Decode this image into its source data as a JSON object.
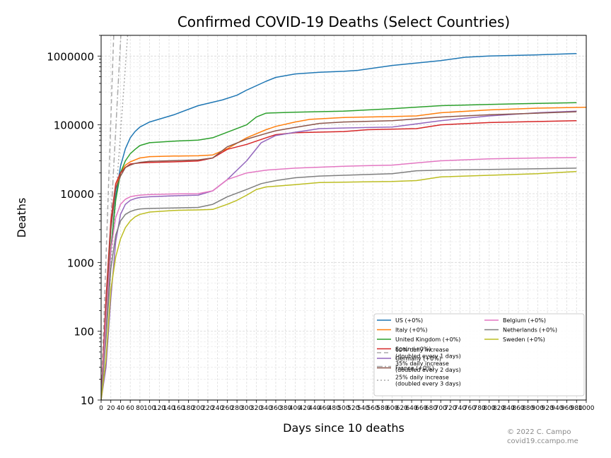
{
  "chart_data": {
    "type": "line",
    "title": "Confirmed COVID-19 Deaths (Select Countries)",
    "xlabel": "Days since 10 deaths",
    "ylabel": "Deaths",
    "yscale": "log",
    "xlim": [
      0,
      1000
    ],
    "ylim": [
      10,
      2000000
    ],
    "yticks": [
      10,
      100,
      1000,
      10000,
      100000,
      1000000
    ],
    "ytick_labels": [
      "10",
      "100",
      "1000",
      "10000",
      "100000",
      "1000000"
    ],
    "xtick_step": 20,
    "grid": true,
    "legend_position": "lower-right",
    "series": [
      {
        "name": "US (+0%)",
        "color": "#1f77b4",
        "points": [
          [
            0,
            10
          ],
          [
            10,
            120
          ],
          [
            20,
            1500
          ],
          [
            30,
            9000
          ],
          [
            40,
            25000
          ],
          [
            50,
            45000
          ],
          [
            60,
            65000
          ],
          [
            70,
            80000
          ],
          [
            80,
            93000
          ],
          [
            100,
            110000
          ],
          [
            150,
            140000
          ],
          [
            200,
            190000
          ],
          [
            250,
            230000
          ],
          [
            280,
            270000
          ],
          [
            300,
            320000
          ],
          [
            340,
            430000
          ],
          [
            360,
            490000
          ],
          [
            400,
            550000
          ],
          [
            450,
            580000
          ],
          [
            500,
            600000
          ],
          [
            530,
            620000
          ],
          [
            600,
            730000
          ],
          [
            700,
            860000
          ],
          [
            750,
            960000
          ],
          [
            800,
            1000000
          ],
          [
            900,
            1040000
          ],
          [
            980,
            1090000
          ]
        ]
      },
      {
        "name": "Italy (+0%)",
        "color": "#ff7f0e",
        "points": [
          [
            0,
            10
          ],
          [
            10,
            200
          ],
          [
            20,
            3000
          ],
          [
            30,
            12000
          ],
          [
            40,
            20000
          ],
          [
            50,
            26000
          ],
          [
            60,
            29000
          ],
          [
            70,
            31000
          ],
          [
            80,
            33000
          ],
          [
            100,
            34500
          ],
          [
            150,
            35200
          ],
          [
            200,
            35500
          ],
          [
            230,
            36500
          ],
          [
            260,
            45000
          ],
          [
            300,
            65000
          ],
          [
            340,
            85000
          ],
          [
            360,
            95000
          ],
          [
            400,
            110000
          ],
          [
            430,
            120000
          ],
          [
            500,
            128000
          ],
          [
            600,
            132000
          ],
          [
            650,
            135000
          ],
          [
            700,
            150000
          ],
          [
            800,
            165000
          ],
          [
            900,
            175000
          ],
          [
            1000,
            180000
          ]
        ]
      },
      {
        "name": "United Kingdom (+0%)",
        "color": "#2ca02c",
        "points": [
          [
            0,
            10
          ],
          [
            10,
            100
          ],
          [
            20,
            1500
          ],
          [
            30,
            8000
          ],
          [
            40,
            20000
          ],
          [
            50,
            30000
          ],
          [
            60,
            38000
          ],
          [
            70,
            44000
          ],
          [
            80,
            50000
          ],
          [
            100,
            55000
          ],
          [
            150,
            58000
          ],
          [
            200,
            60000
          ],
          [
            230,
            65000
          ],
          [
            260,
            78000
          ],
          [
            300,
            100000
          ],
          [
            320,
            130000
          ],
          [
            340,
            148000
          ],
          [
            400,
            153000
          ],
          [
            500,
            158000
          ],
          [
            600,
            172000
          ],
          [
            700,
            190000
          ],
          [
            800,
            198000
          ],
          [
            900,
            205000
          ],
          [
            980,
            210000
          ]
        ]
      },
      {
        "name": "Spain (+0%)",
        "color": "#d62728",
        "points": [
          [
            0,
            10
          ],
          [
            10,
            300
          ],
          [
            20,
            4000
          ],
          [
            30,
            14000
          ],
          [
            40,
            20000
          ],
          [
            50,
            24000
          ],
          [
            60,
            27000
          ],
          [
            70,
            27500
          ],
          [
            80,
            28000
          ],
          [
            100,
            28400
          ],
          [
            150,
            29000
          ],
          [
            200,
            29800
          ],
          [
            230,
            33000
          ],
          [
            260,
            44000
          ],
          [
            300,
            52000
          ],
          [
            340,
            65000
          ],
          [
            360,
            72000
          ],
          [
            400,
            77000
          ],
          [
            500,
            80000
          ],
          [
            550,
            85000
          ],
          [
            650,
            88000
          ],
          [
            700,
            100000
          ],
          [
            800,
            108000
          ],
          [
            900,
            112000
          ],
          [
            980,
            115000
          ]
        ]
      },
      {
        "name": "Germany (+0%)",
        "color": "#9467bd",
        "points": [
          [
            0,
            10
          ],
          [
            10,
            30
          ],
          [
            20,
            300
          ],
          [
            30,
            2000
          ],
          [
            40,
            5000
          ],
          [
            50,
            7000
          ],
          [
            60,
            8000
          ],
          [
            70,
            8500
          ],
          [
            80,
            8800
          ],
          [
            100,
            9000
          ],
          [
            150,
            9300
          ],
          [
            200,
            9500
          ],
          [
            230,
            11000
          ],
          [
            260,
            16000
          ],
          [
            300,
            30000
          ],
          [
            330,
            55000
          ],
          [
            360,
            70000
          ],
          [
            400,
            78000
          ],
          [
            450,
            88000
          ],
          [
            500,
            90000
          ],
          [
            600,
            93000
          ],
          [
            700,
            115000
          ],
          [
            800,
            135000
          ],
          [
            900,
            150000
          ],
          [
            980,
            158000
          ]
        ]
      },
      {
        "name": "France (+0%)",
        "color": "#8c564b",
        "points": [
          [
            0,
            10
          ],
          [
            10,
            200
          ],
          [
            20,
            3000
          ],
          [
            30,
            12000
          ],
          [
            40,
            18000
          ],
          [
            50,
            24000
          ],
          [
            60,
            26000
          ],
          [
            70,
            27500
          ],
          [
            80,
            28500
          ],
          [
            100,
            29500
          ],
          [
            150,
            30200
          ],
          [
            200,
            31000
          ],
          [
            230,
            33000
          ],
          [
            260,
            48000
          ],
          [
            300,
            62000
          ],
          [
            340,
            75000
          ],
          [
            360,
            82000
          ],
          [
            400,
            92000
          ],
          [
            450,
            105000
          ],
          [
            500,
            110000
          ],
          [
            600,
            115000
          ],
          [
            700,
            130000
          ],
          [
            800,
            140000
          ],
          [
            900,
            148000
          ],
          [
            980,
            155000
          ]
        ]
      },
      {
        "name": "Belgium (+0%)",
        "color": "#e377c2",
        "points": [
          [
            0,
            10
          ],
          [
            10,
            150
          ],
          [
            20,
            1500
          ],
          [
            30,
            4500
          ],
          [
            40,
            7000
          ],
          [
            50,
            8300
          ],
          [
            60,
            9000
          ],
          [
            70,
            9300
          ],
          [
            80,
            9500
          ],
          [
            100,
            9700
          ],
          [
            150,
            9900
          ],
          [
            200,
            10000
          ],
          [
            230,
            11000
          ],
          [
            260,
            16000
          ],
          [
            300,
            20000
          ],
          [
            340,
            22000
          ],
          [
            400,
            23500
          ],
          [
            500,
            25000
          ],
          [
            600,
            26000
          ],
          [
            650,
            28000
          ],
          [
            700,
            30000
          ],
          [
            800,
            32000
          ],
          [
            900,
            33000
          ],
          [
            980,
            33500
          ]
        ]
      },
      {
        "name": "Netherlands (+0%)",
        "color": "#7f7f7f",
        "points": [
          [
            0,
            10
          ],
          [
            10,
            80
          ],
          [
            20,
            800
          ],
          [
            30,
            2500
          ],
          [
            40,
            4000
          ],
          [
            50,
            5000
          ],
          [
            60,
            5500
          ],
          [
            70,
            5800
          ],
          [
            80,
            6000
          ],
          [
            100,
            6100
          ],
          [
            150,
            6200
          ],
          [
            200,
            6300
          ],
          [
            230,
            7000
          ],
          [
            260,
            9000
          ],
          [
            300,
            11500
          ],
          [
            330,
            14000
          ],
          [
            360,
            15500
          ],
          [
            400,
            17000
          ],
          [
            450,
            18000
          ],
          [
            500,
            18500
          ],
          [
            600,
            19500
          ],
          [
            650,
            21500
          ],
          [
            700,
            22000
          ],
          [
            800,
            22500
          ],
          [
            900,
            23000
          ],
          [
            980,
            23500
          ]
        ]
      },
      {
        "name": "Sweden (+0%)",
        "color": "#bcbd22",
        "points": [
          [
            0,
            10
          ],
          [
            10,
            40
          ],
          [
            20,
            400
          ],
          [
            30,
            1200
          ],
          [
            40,
            2200
          ],
          [
            50,
            3200
          ],
          [
            60,
            4000
          ],
          [
            70,
            4600
          ],
          [
            80,
            5000
          ],
          [
            100,
            5400
          ],
          [
            150,
            5700
          ],
          [
            200,
            5800
          ],
          [
            230,
            5900
          ],
          [
            260,
            7000
          ],
          [
            280,
            8000
          ],
          [
            300,
            9500
          ],
          [
            320,
            11500
          ],
          [
            340,
            12500
          ],
          [
            400,
            13500
          ],
          [
            450,
            14500
          ],
          [
            500,
            14700
          ],
          [
            600,
            15000
          ],
          [
            650,
            15500
          ],
          [
            700,
            17500
          ],
          [
            800,
            18500
          ],
          [
            900,
            19500
          ],
          [
            980,
            21000
          ]
        ]
      }
    ],
    "reference_lines": [
      {
        "name": "60% daily increase\n(doubled every 1 days)",
        "color": "#aaaaaa",
        "style": "dashed",
        "rate": 1.6
      },
      {
        "name": "35% daily increase\n(doubled every 2 days)",
        "color": "#aaaaaa",
        "style": "dashdot",
        "rate": 1.35
      },
      {
        "name": "25% daily increase\n(doubled every 3 days)",
        "color": "#aaaaaa",
        "style": "dotted",
        "rate": 1.25
      }
    ]
  },
  "credit": {
    "line1": "© 2022 C. Campo",
    "line2": "covid19.ccampo.me"
  }
}
